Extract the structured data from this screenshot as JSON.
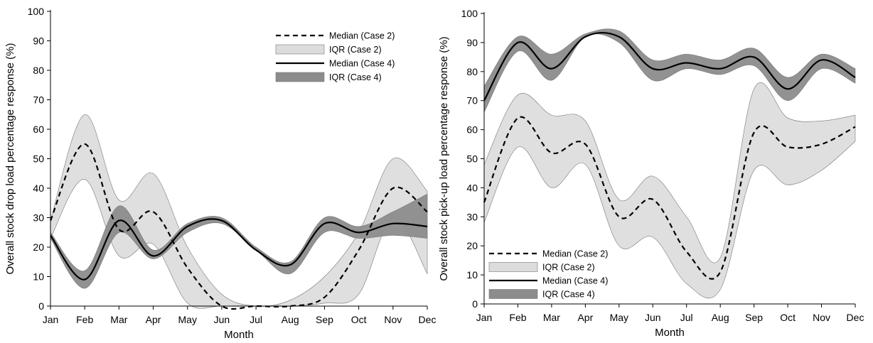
{
  "chart_data": [
    {
      "type": "line",
      "xlabel": "Month",
      "ylabel": "Overall stock drop load percentage response (%)",
      "categories": [
        "Jan",
        "Feb",
        "Mar",
        "Apr",
        "May",
        "Jun",
        "Jul",
        "Aug",
        "Sep",
        "Oct",
        "Nov",
        "Dec"
      ],
      "ylim": [
        0,
        100
      ],
      "yticks": [
        "0",
        "10",
        "20",
        "30",
        "40",
        "50",
        "60",
        "70",
        "80",
        "90",
        "100"
      ],
      "grid": false,
      "legend_position": "top-right",
      "series": [
        {
          "name": "Median (Case 2)",
          "kind": "median",
          "style": "dashed",
          "values": [
            29,
            55,
            26,
            32,
            13,
            0,
            0,
            0,
            3,
            19,
            40,
            32
          ]
        },
        {
          "name": "IQR (Case 2)",
          "kind": "iqr",
          "color": "#dcdcdc",
          "lower": [
            23,
            43,
            17,
            21,
            1,
            0,
            0,
            0,
            1,
            4,
            30,
            11
          ],
          "upper": [
            29,
            65,
            36,
            45,
            20,
            4,
            0,
            2,
            10,
            25,
            50,
            39
          ]
        },
        {
          "name": "Median (Case 4)",
          "kind": "median",
          "style": "solid",
          "values": [
            24,
            9,
            29,
            17,
            27,
            29,
            19,
            14,
            28,
            25,
            28,
            27
          ]
        },
        {
          "name": "IQR (Case 4)",
          "kind": "iqr",
          "color": "#8c8c8c",
          "lower": [
            23,
            6,
            25,
            16,
            25,
            28,
            19,
            11,
            25,
            23,
            24,
            23
          ],
          "upper": [
            25,
            12,
            34,
            19,
            28,
            30,
            20,
            15,
            30,
            27,
            32,
            38
          ]
        }
      ]
    },
    {
      "type": "line",
      "xlabel": "Month",
      "ylabel": "Overall stock pick-up load percentage response (%)",
      "categories": [
        "Jan",
        "Feb",
        "Mar",
        "Apr",
        "May",
        "Jun",
        "Jul",
        "Aug",
        "Sep",
        "Oct",
        "Nov",
        "Dec"
      ],
      "ylim": [
        0,
        100
      ],
      "yticks": [
        "0",
        "10",
        "20",
        "30",
        "40",
        "50",
        "60",
        "70",
        "80",
        "90",
        "100"
      ],
      "grid": false,
      "legend_position": "bottom-left",
      "series": [
        {
          "name": "Median (Case 2)",
          "kind": "median",
          "style": "dashed",
          "values": [
            35,
            64,
            52,
            55,
            30,
            36,
            18,
            11,
            59,
            54,
            55,
            61
          ]
        },
        {
          "name": "IQR (Case 2)",
          "kind": "iqr",
          "color": "#dcdcdc",
          "lower": [
            28,
            54,
            40,
            48,
            20,
            23,
            7,
            5,
            46,
            41,
            46,
            56
          ],
          "upper": [
            48,
            72,
            65,
            63,
            36,
            44,
            30,
            16,
            74,
            64,
            63,
            65
          ]
        },
        {
          "name": "Median (Case 4)",
          "kind": "median",
          "style": "solid",
          "values": [
            70,
            90,
            81,
            92,
            92,
            81,
            83,
            81,
            85,
            74,
            84,
            78
          ]
        },
        {
          "name": "IQR (Case 4)",
          "kind": "iqr",
          "color": "#8c8c8c",
          "lower": [
            66,
            87,
            77,
            92,
            90,
            77,
            81,
            79,
            82,
            70,
            81,
            76
          ],
          "upper": [
            75,
            92,
            86,
            93,
            94,
            84,
            86,
            84,
            88,
            78,
            86,
            81
          ]
        }
      ]
    }
  ]
}
